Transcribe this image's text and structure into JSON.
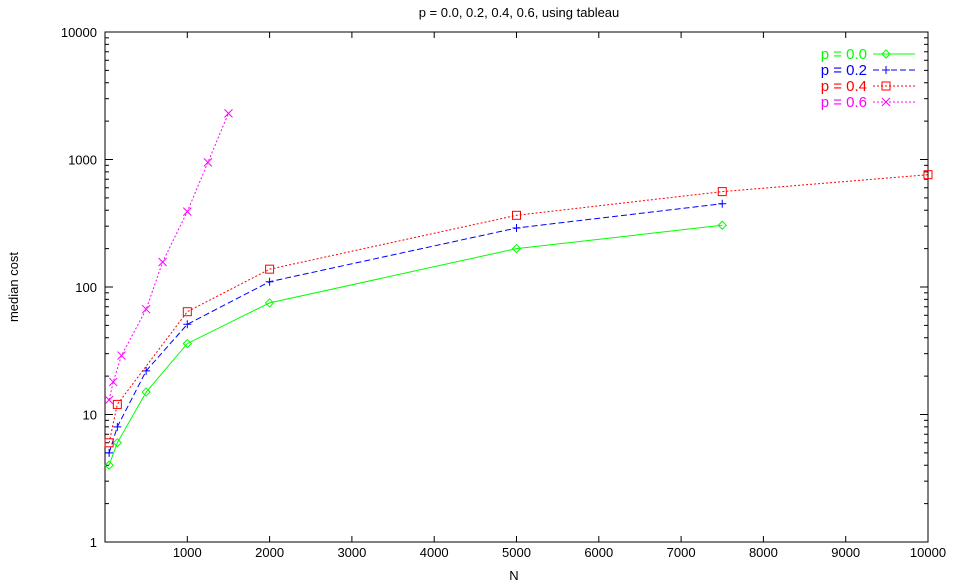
{
  "chart_data": {
    "type": "line",
    "title": "p = 0.0, 0.2, 0.4, 0.6,  using tableau",
    "xlabel": "N",
    "ylabel": "median cost",
    "xlim": [
      0,
      10000
    ],
    "ylim": [
      1,
      10000
    ],
    "yscale": "log",
    "grid": false,
    "legend_position": "top-right",
    "x_ticks": [
      1000,
      2000,
      3000,
      4000,
      5000,
      6000,
      7000,
      8000,
      9000,
      10000
    ],
    "x_tick_labels": [
      "1000",
      "2000",
      "3000",
      "4000",
      "5000",
      "6000",
      "7000",
      "8000",
      "9000",
      "10000"
    ],
    "y_ticks": [
      1,
      10,
      100,
      1000,
      10000
    ],
    "y_tick_labels": [
      "1",
      "10",
      "100",
      "1000",
      "10000"
    ],
    "series": [
      {
        "name": "p = 0.0",
        "color": "#00ff00",
        "marker": "diamond",
        "line_style": "solid",
        "x": [
          50,
          150,
          500,
          1000,
          2000,
          5000,
          7500
        ],
        "y": [
          4,
          6,
          15,
          36,
          75,
          200,
          305
        ]
      },
      {
        "name": "p = 0.2",
        "color": "#0000ff",
        "marker": "plus",
        "line_style": "dashed",
        "x": [
          50,
          150,
          500,
          1000,
          2000,
          5000,
          7500
        ],
        "y": [
          5,
          8,
          22,
          51,
          110,
          290,
          450
        ]
      },
      {
        "name": "p = 0.4",
        "color": "#ff0000",
        "marker": "square",
        "line_style": "dotted",
        "x": [
          50,
          150,
          1000,
          2000,
          5000,
          7500,
          10000
        ],
        "y": [
          6,
          12,
          64,
          138,
          365,
          560,
          760
        ]
      },
      {
        "name": "p = 0.6",
        "color": "#ff00ff",
        "marker": "cross",
        "line_style": "dotted",
        "x": [
          50,
          100,
          200,
          500,
          700,
          1000,
          1250,
          1500
        ],
        "y": [
          13,
          18,
          29,
          67,
          157,
          390,
          950,
          2300
        ]
      }
    ]
  }
}
